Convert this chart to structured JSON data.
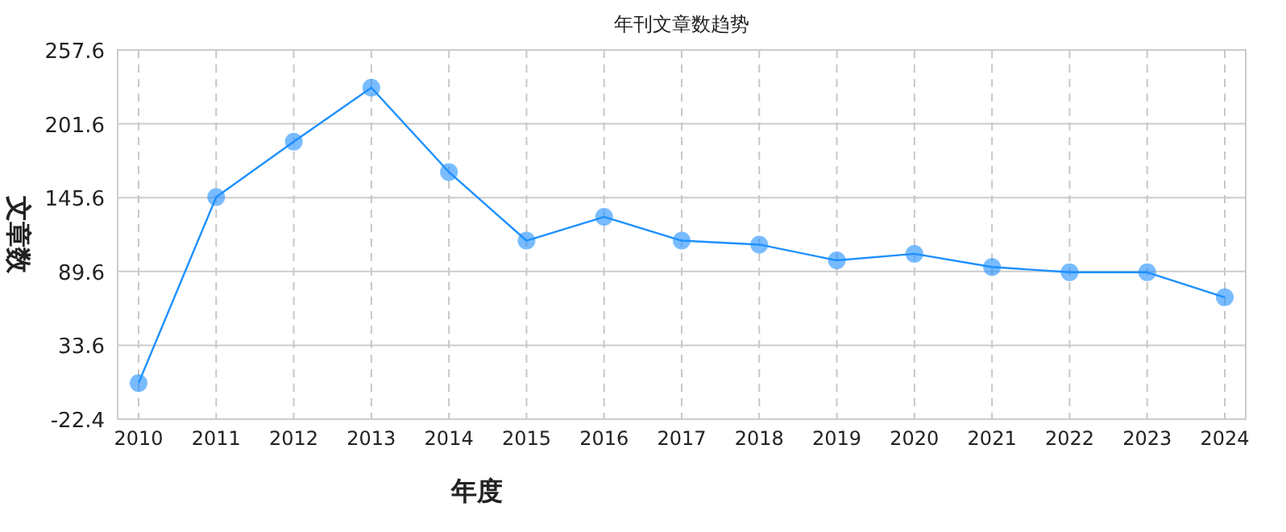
{
  "chart_data": {
    "type": "line",
    "title": "年刊文章数趋势",
    "xlabel": "年度",
    "ylabel": "文章数",
    "categories": [
      "2010",
      "2011",
      "2012",
      "2013",
      "2014",
      "2015",
      "2016",
      "2017",
      "2018",
      "2019",
      "2020",
      "2021",
      "2022",
      "2023",
      "2024"
    ],
    "series": [
      {
        "color": "#1e90ff",
        "values": [
          5,
          146,
          188,
          229,
          165,
          113,
          131,
          113,
          110,
          98,
          103,
          93,
          89,
          89,
          70
        ]
      }
    ],
    "ylim": [
      -22.4,
      257.6
    ],
    "yticks": [
      -22.4,
      33.6,
      89.6,
      145.6,
      201.6,
      257.6
    ],
    "grid": true,
    "marker": "circle"
  }
}
